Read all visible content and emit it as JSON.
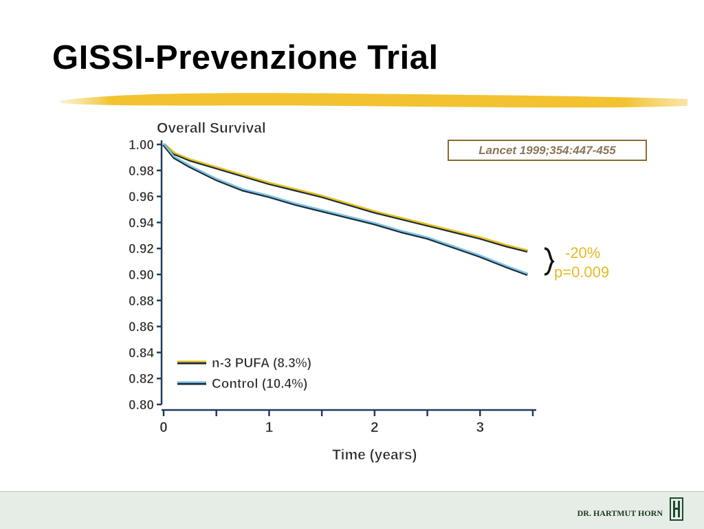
{
  "slide": {
    "title": "GISSI-Prevenzione Trial",
    "citation": "Lancet 1999;354:447-455",
    "annotation_delta": "-20%",
    "annotation_p": "p=0.009",
    "footer": "DR. HARTMUT HORN",
    "accent_color": "#f2c230"
  },
  "chart_data": {
    "type": "line",
    "title": "Overall Survival",
    "xlabel": "Time (years)",
    "ylabel": "",
    "xlim": [
      0,
      3.5
    ],
    "ylim": [
      0.8,
      1.0
    ],
    "x_ticks": [
      "0",
      "1",
      "2",
      "3"
    ],
    "y_ticks": [
      "0.80",
      "0.82",
      "0.84",
      "0.86",
      "0.88",
      "0.90",
      "0.92",
      "0.94",
      "0.96",
      "0.98",
      "1.00"
    ],
    "legend_position": "bottom-left",
    "series": [
      {
        "name": "n-3 PUFA (8.3%)",
        "color": "#e8c21c",
        "x": [
          0,
          0.1,
          0.25,
          0.5,
          0.75,
          1.0,
          1.25,
          1.5,
          1.75,
          2.0,
          2.25,
          2.5,
          2.75,
          3.0,
          3.25,
          3.45
        ],
        "y": [
          1.0,
          0.993,
          0.988,
          0.982,
          0.976,
          0.97,
          0.965,
          0.96,
          0.954,
          0.948,
          0.943,
          0.938,
          0.933,
          0.928,
          0.922,
          0.918
        ]
      },
      {
        "name": "Control (10.4%)",
        "color": "#7fc4e4",
        "x": [
          0,
          0.1,
          0.25,
          0.5,
          0.75,
          1.0,
          1.25,
          1.5,
          1.75,
          2.0,
          2.25,
          2.5,
          2.75,
          3.0,
          3.25,
          3.45
        ],
        "y": [
          1.0,
          0.99,
          0.983,
          0.973,
          0.965,
          0.96,
          0.954,
          0.949,
          0.944,
          0.939,
          0.933,
          0.928,
          0.921,
          0.914,
          0.906,
          0.9
        ]
      }
    ]
  }
}
